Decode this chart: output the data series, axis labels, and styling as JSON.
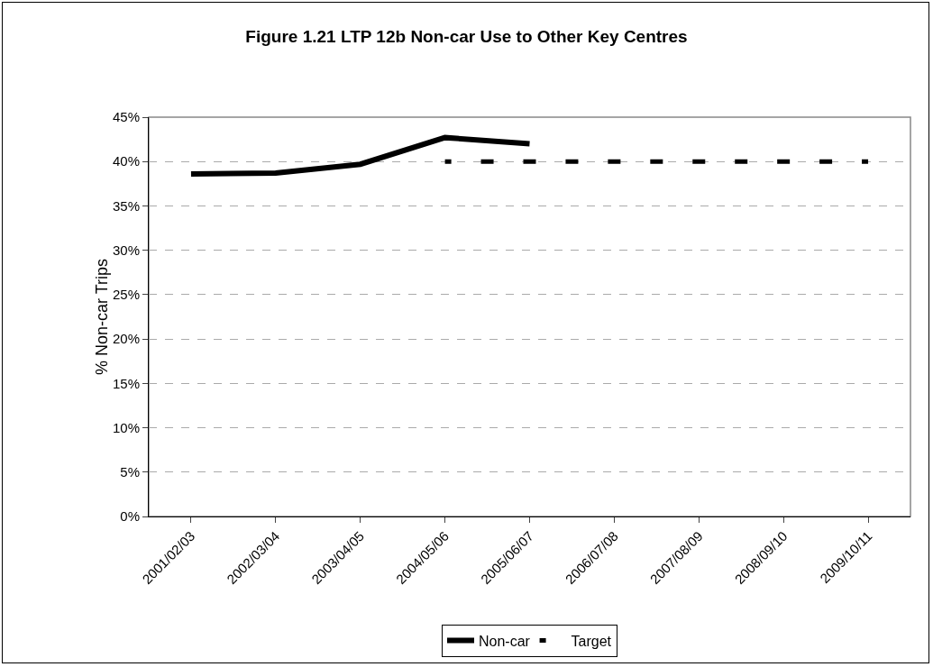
{
  "chart_data": {
    "type": "line",
    "title": "Figure 1.21 LTP 12b Non-car Use to Other Key Centres",
    "ylabel": "% Non-car Trips",
    "categories": [
      "2001/02/03",
      "2002/03/04",
      "2003/04/05",
      "2004/05/06",
      "2005/06/07",
      "2006/07/08",
      "2007/08/09",
      "2008/09/10",
      "2009/10/11"
    ],
    "series": [
      {
        "name": "Non-car",
        "color": "#000000",
        "line_style": "solid",
        "values": [
          38.6,
          38.7,
          39.7,
          42.7,
          42.0,
          null,
          null,
          null,
          null
        ]
      },
      {
        "name": "Target",
        "color": "#000000",
        "line_style": "dashed",
        "values": [
          null,
          null,
          null,
          40,
          40,
          40,
          40,
          40,
          40
        ]
      }
    ],
    "ylim": [
      0,
      45
    ],
    "yticks": [
      {
        "value": 0,
        "label": "0%"
      },
      {
        "value": 5,
        "label": "5%"
      },
      {
        "value": 10,
        "label": "10%"
      },
      {
        "value": 15,
        "label": "15%"
      },
      {
        "value": 20,
        "label": "20%"
      },
      {
        "value": 25,
        "label": "25%"
      },
      {
        "value": 30,
        "label": "30%"
      },
      {
        "value": 35,
        "label": "35%"
      },
      {
        "value": 40,
        "label": "40%"
      },
      {
        "value": 45,
        "label": "45%"
      }
    ],
    "grid": "y",
    "legend": "bottom",
    "marker": "none"
  }
}
